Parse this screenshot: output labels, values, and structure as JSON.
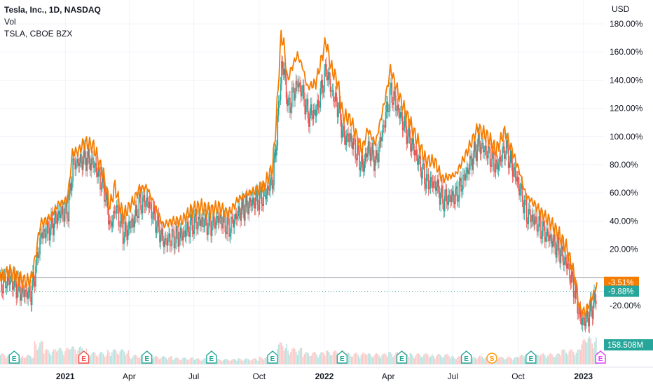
{
  "legend": {
    "title": "Tesla, Inc., 1D, NASDAQ",
    "vol_label": "Vol",
    "compare_label": "TSLA, CBOE BZX"
  },
  "chart_data": {
    "type": "line",
    "currency_label": "USD",
    "y_unit": "%",
    "ylim": [
      -33,
      187
    ],
    "y_ticks": [
      "180.00%",
      "160.00%",
      "140.00%",
      "120.00%",
      "100.00%",
      "80.00%",
      "60.00%",
      "40.00%",
      "20.00%",
      "-20.00%"
    ],
    "y_tick_values": [
      180,
      160,
      140,
      120,
      100,
      80,
      60,
      40,
      20,
      -20
    ],
    "x_range": [
      "2020-10-01",
      "2023-01-20"
    ],
    "x_ticks": [
      {
        "label": "2021",
        "date": "2021-01-01",
        "bold": true
      },
      {
        "label": "Apr",
        "date": "2021-04-01",
        "bold": false
      },
      {
        "label": "Jul",
        "date": "2021-07-01",
        "bold": false
      },
      {
        "label": "Oct",
        "date": "2021-10-01",
        "bold": false
      },
      {
        "label": "2022",
        "date": "2022-01-01",
        "bold": true
      },
      {
        "label": "Apr",
        "date": "2022-04-01",
        "bold": false
      },
      {
        "label": "Jul",
        "date": "2022-07-01",
        "bold": false
      },
      {
        "label": "Oct",
        "date": "2022-10-01",
        "bold": false
      },
      {
        "label": "2023",
        "date": "2023-01-01",
        "bold": true
      }
    ],
    "grid": true,
    "baseline": 0,
    "series": [
      {
        "name": "TSLA, CBOE BZX",
        "color": "#f57c00",
        "points": [
          [
            "2020-10-01",
            0
          ],
          [
            "2020-10-15",
            4
          ],
          [
            "2020-10-30",
            -2
          ],
          [
            "2020-11-13",
            -3
          ],
          [
            "2020-11-18",
            9
          ],
          [
            "2020-11-27",
            38
          ],
          [
            "2020-12-10",
            42
          ],
          [
            "2020-12-22",
            52
          ],
          [
            "2021-01-04",
            55
          ],
          [
            "2021-01-11",
            88
          ],
          [
            "2021-01-20",
            90
          ],
          [
            "2021-01-28",
            96
          ],
          [
            "2021-02-10",
            93
          ],
          [
            "2021-02-24",
            72
          ],
          [
            "2021-03-05",
            50
          ],
          [
            "2021-03-12",
            65
          ],
          [
            "2021-03-18",
            52
          ],
          [
            "2021-03-24",
            44
          ],
          [
            "2021-04-08",
            55
          ],
          [
            "2021-04-14",
            62
          ],
          [
            "2021-04-26",
            64
          ],
          [
            "2021-05-06",
            52
          ],
          [
            "2021-05-19",
            37
          ],
          [
            "2021-06-01",
            40
          ],
          [
            "2021-06-14",
            40
          ],
          [
            "2021-06-28",
            48
          ],
          [
            "2021-07-12",
            50
          ],
          [
            "2021-07-23",
            47
          ],
          [
            "2021-08-05",
            50
          ],
          [
            "2021-08-19",
            45
          ],
          [
            "2021-09-01",
            55
          ],
          [
            "2021-09-16",
            60
          ],
          [
            "2021-09-28",
            62
          ],
          [
            "2021-10-08",
            65
          ],
          [
            "2021-10-20",
            78
          ],
          [
            "2021-10-25",
            110
          ],
          [
            "2021-11-01",
            172
          ],
          [
            "2021-11-05",
            165
          ],
          [
            "2021-11-10",
            140
          ],
          [
            "2021-11-17",
            150
          ],
          [
            "2021-11-24",
            158
          ],
          [
            "2021-12-01",
            150
          ],
          [
            "2021-12-08",
            135
          ],
          [
            "2021-12-20",
            138
          ],
          [
            "2022-01-03",
            168
          ],
          [
            "2022-01-10",
            150
          ],
          [
            "2022-01-20",
            138
          ],
          [
            "2022-01-27",
            115
          ],
          [
            "2022-02-07",
            112
          ],
          [
            "2022-02-23",
            90
          ],
          [
            "2022-03-03",
            105
          ],
          [
            "2022-03-14",
            95
          ],
          [
            "2022-03-29",
            130
          ],
          [
            "2022-04-04",
            148
          ],
          [
            "2022-04-19",
            125
          ],
          [
            "2022-05-03",
            108
          ],
          [
            "2022-05-24",
            83
          ],
          [
            "2022-06-06",
            82
          ],
          [
            "2022-06-16",
            70
          ],
          [
            "2022-07-05",
            73
          ],
          [
            "2022-07-20",
            88
          ],
          [
            "2022-08-05",
            106
          ],
          [
            "2022-08-19",
            100
          ],
          [
            "2022-08-31",
            90
          ],
          [
            "2022-09-12",
            104
          ],
          [
            "2022-09-21",
            92
          ],
          [
            "2022-10-03",
            75
          ],
          [
            "2022-10-12",
            58
          ],
          [
            "2022-10-24",
            52
          ],
          [
            "2022-11-04",
            45
          ],
          [
            "2022-11-14",
            40
          ],
          [
            "2022-11-28",
            30
          ],
          [
            "2022-12-09",
            20
          ],
          [
            "2022-12-20",
            0
          ],
          [
            "2022-12-27",
            -23
          ],
          [
            "2023-01-03",
            -25
          ],
          [
            "2023-01-10",
            -18
          ],
          [
            "2023-01-18",
            -8
          ],
          [
            "2023-01-20",
            -3.51
          ]
        ]
      },
      {
        "name": "Tesla, Inc.",
        "color_up": "#26a69a",
        "color_down": "#ef5350",
        "line_color": "#5e6a72",
        "points": [
          [
            "2020-10-01",
            -5
          ],
          [
            "2020-10-15",
            -2
          ],
          [
            "2020-10-30",
            -10
          ],
          [
            "2020-11-13",
            -12
          ],
          [
            "2020-11-18",
            2
          ],
          [
            "2020-11-27",
            30
          ],
          [
            "2020-12-10",
            35
          ],
          [
            "2020-12-22",
            45
          ],
          [
            "2021-01-04",
            47
          ],
          [
            "2021-01-11",
            80
          ],
          [
            "2021-01-20",
            82
          ],
          [
            "2021-01-28",
            85
          ],
          [
            "2021-02-10",
            80
          ],
          [
            "2021-02-24",
            62
          ],
          [
            "2021-03-05",
            35
          ],
          [
            "2021-03-12",
            50
          ],
          [
            "2021-03-18",
            40
          ],
          [
            "2021-03-24",
            30
          ],
          [
            "2021-04-08",
            42
          ],
          [
            "2021-04-14",
            52
          ],
          [
            "2021-04-26",
            54
          ],
          [
            "2021-05-06",
            42
          ],
          [
            "2021-05-19",
            25
          ],
          [
            "2021-06-01",
            28
          ],
          [
            "2021-06-14",
            30
          ],
          [
            "2021-06-28",
            38
          ],
          [
            "2021-07-12",
            40
          ],
          [
            "2021-07-23",
            37
          ],
          [
            "2021-08-05",
            42
          ],
          [
            "2021-08-19",
            35
          ],
          [
            "2021-09-01",
            46
          ],
          [
            "2021-09-16",
            52
          ],
          [
            "2021-09-28",
            55
          ],
          [
            "2021-10-08",
            58
          ],
          [
            "2021-10-20",
            70
          ],
          [
            "2021-10-25",
            100
          ],
          [
            "2021-11-01",
            150
          ],
          [
            "2021-11-05",
            145
          ],
          [
            "2021-11-10",
            120
          ],
          [
            "2021-11-17",
            130
          ],
          [
            "2021-11-24",
            138
          ],
          [
            "2021-12-01",
            130
          ],
          [
            "2021-12-08",
            115
          ],
          [
            "2021-12-20",
            118
          ],
          [
            "2022-01-03",
            148
          ],
          [
            "2022-01-10",
            132
          ],
          [
            "2022-01-20",
            120
          ],
          [
            "2022-01-27",
            100
          ],
          [
            "2022-02-07",
            98
          ],
          [
            "2022-02-23",
            78
          ],
          [
            "2022-03-03",
            92
          ],
          [
            "2022-03-14",
            82
          ],
          [
            "2022-03-29",
            118
          ],
          [
            "2022-04-04",
            132
          ],
          [
            "2022-04-19",
            112
          ],
          [
            "2022-05-03",
            95
          ],
          [
            "2022-05-24",
            68
          ],
          [
            "2022-06-06",
            66
          ],
          [
            "2022-06-16",
            55
          ],
          [
            "2022-07-05",
            58
          ],
          [
            "2022-07-20",
            75
          ],
          [
            "2022-08-05",
            95
          ],
          [
            "2022-08-19",
            88
          ],
          [
            "2022-08-31",
            78
          ],
          [
            "2022-09-12",
            92
          ],
          [
            "2022-09-21",
            80
          ],
          [
            "2022-10-03",
            62
          ],
          [
            "2022-10-12",
            45
          ],
          [
            "2022-10-24",
            40
          ],
          [
            "2022-11-04",
            33
          ],
          [
            "2022-11-14",
            28
          ],
          [
            "2022-11-28",
            18
          ],
          [
            "2022-12-09",
            8
          ],
          [
            "2022-12-20",
            -12
          ],
          [
            "2022-12-27",
            -30
          ],
          [
            "2023-01-03",
            -31
          ],
          [
            "2023-01-10",
            -24
          ],
          [
            "2023-01-18",
            -14
          ],
          [
            "2023-01-20",
            -9.88
          ]
        ]
      }
    ],
    "last_values": [
      {
        "label": "-3.51%",
        "value": -3.51,
        "color": "#f57c00"
      },
      {
        "label": "-9.88%",
        "value": -9.88,
        "color": "#26a69a"
      }
    ],
    "volume": {
      "label": "158.508M",
      "color": "#26a69a",
      "ylim": [
        0,
        150
      ],
      "bars": [
        [
          "2020-10-01",
          40
        ],
        [
          "2020-10-15",
          30
        ],
        [
          "2020-11-01",
          35
        ],
        [
          "2020-11-18",
          85
        ],
        [
          "2020-12-01",
          55
        ],
        [
          "2020-12-21",
          60
        ],
        [
          "2021-01-08",
          65
        ],
        [
          "2021-02-01",
          45
        ],
        [
          "2021-03-01",
          55
        ],
        [
          "2021-04-01",
          35
        ],
        [
          "2021-05-01",
          30
        ],
        [
          "2021-06-01",
          25
        ],
        [
          "2021-07-01",
          22
        ],
        [
          "2021-08-01",
          20
        ],
        [
          "2021-09-01",
          22
        ],
        [
          "2021-10-01",
          28
        ],
        [
          "2021-10-26",
          80
        ],
        [
          "2021-11-10",
          60
        ],
        [
          "2021-12-01",
          45
        ],
        [
          "2022-01-03",
          50
        ],
        [
          "2022-02-01",
          42
        ],
        [
          "2022-03-01",
          40
        ],
        [
          "2022-04-01",
          45
        ],
        [
          "2022-05-01",
          40
        ],
        [
          "2022-06-01",
          38
        ],
        [
          "2022-07-01",
          30
        ],
        [
          "2022-08-01",
          32
        ],
        [
          "2022-09-01",
          28
        ],
        [
          "2022-10-01",
          35
        ],
        [
          "2022-11-01",
          40
        ],
        [
          "2022-12-01",
          55
        ],
        [
          "2022-12-27",
          90
        ],
        [
          "2023-01-05",
          100
        ],
        [
          "2023-01-20",
          60
        ]
      ]
    },
    "events": [
      {
        "type": "E",
        "date": "2020-10-21",
        "color": "#26a69a"
      },
      {
        "type": "E",
        "date": "2021-01-27",
        "color": "#ef5350"
      },
      {
        "type": "E",
        "date": "2021-04-26",
        "color": "#26a69a"
      },
      {
        "type": "E",
        "date": "2021-07-26",
        "color": "#26a69a"
      },
      {
        "type": "E",
        "date": "2021-10-20",
        "color": "#26a69a"
      },
      {
        "type": "E",
        "date": "2022-01-26",
        "color": "#26a69a"
      },
      {
        "type": "E",
        "date": "2022-04-20",
        "color": "#26a69a"
      },
      {
        "type": "E",
        "date": "2022-07-20",
        "color": "#26a69a"
      },
      {
        "type": "S",
        "date": "2022-08-25",
        "color": "#ff9800"
      },
      {
        "type": "E",
        "date": "2022-10-19",
        "color": "#26a69a"
      },
      {
        "type": "E",
        "date": "2023-01-25",
        "color": "#e040fb"
      }
    ]
  }
}
